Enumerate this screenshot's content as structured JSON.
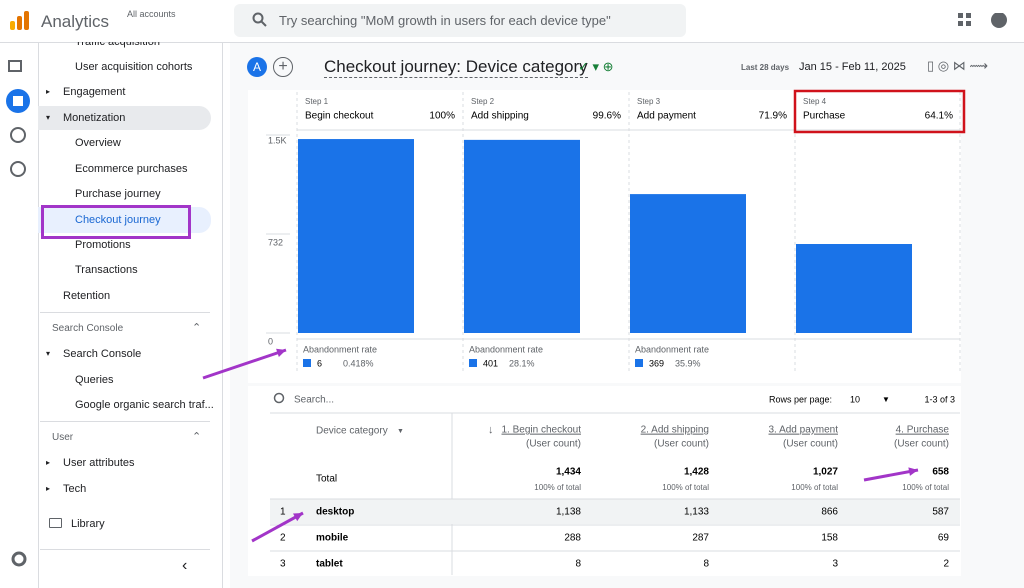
{
  "app": {
    "name": "Analytics",
    "account_label": "All accounts",
    "search_placeholder": "Try searching \"MoM growth in users for each device type\""
  },
  "sidebar": {
    "items": [
      "Traffic acquisition",
      "User acquisition cohorts",
      "Engagement",
      "Monetization",
      "Overview",
      "Ecommerce purchases",
      "Purchase journey",
      "Checkout journey",
      "Promotions",
      "Transactions",
      "Retention"
    ],
    "search_console_section": "Search Console",
    "search_console_items": [
      "Search Console",
      "Queries",
      "Google organic search traf..."
    ],
    "user_section": "User",
    "user_items": [
      "User attributes",
      "Tech"
    ],
    "library": "Library"
  },
  "header": {
    "avatar": "A",
    "title": "Checkout journey: Device category",
    "date_prefix": "Last 28 days",
    "date_range": "Jan 15 - Feb 11, 2025"
  },
  "funnel": {
    "type": "bar",
    "color": "#1a73e8",
    "abandonment_label": "Abandonment rate",
    "ylim": [
      0,
      1464
    ],
    "yticks": [
      0,
      732,
      {
        "value": 1464,
        "label": "1.5K"
      }
    ],
    "steps": [
      {
        "step": "Step 1",
        "name": "Begin checkout",
        "rate": "100%",
        "value": 1434,
        "abandonment": 6,
        "abandonment_rate": "0.418%"
      },
      {
        "step": "Step 2",
        "name": "Add shipping",
        "rate": "99.6%",
        "value": 1428,
        "abandonment": 401,
        "abandonment_rate": "28.1%"
      },
      {
        "step": "Step 3",
        "name": "Add payment",
        "rate": "71.9%",
        "value": 1027,
        "abandonment": 369,
        "abandonment_rate": "35.9%"
      },
      {
        "step": "Step 4",
        "name": "Purchase",
        "rate": "64.1%",
        "value": 658
      }
    ]
  },
  "table": {
    "search_placeholder": "Search...",
    "rows_per_page_label": "Rows per page:",
    "rows_per_page": "10",
    "range": "1-3 of 3",
    "dimension": "Device category",
    "columns": [
      "1. Begin checkout",
      "2. Add shipping",
      "3. Add payment",
      "4. Purchase"
    ],
    "column_unit": "(User count)",
    "total_label": "Total",
    "totals": [
      "1,434",
      "1,428",
      "1,027",
      "658"
    ],
    "total_share": "100% of total",
    "rows": [
      [
        "1",
        "desktop",
        "1,138",
        "1,133",
        "866",
        "587"
      ],
      [
        "2",
        "mobile",
        "288",
        "287",
        "158",
        "69"
      ],
      [
        "3",
        "tablet",
        "8",
        "8",
        "3",
        "2"
      ]
    ]
  }
}
